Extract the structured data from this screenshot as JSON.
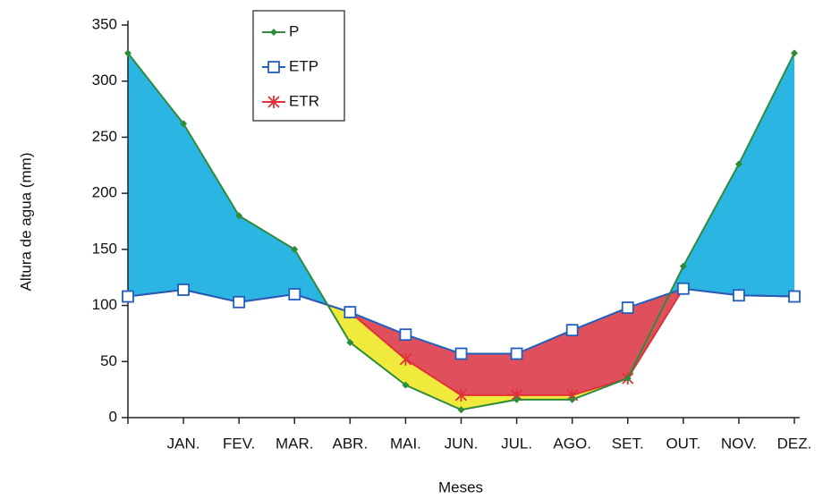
{
  "chart_data": {
    "type": "line",
    "x_label": "Meses",
    "y_label": "Altura de agua (mm)",
    "categories": [
      null,
      "JAN.",
      "FEV.",
      "MAR.",
      "ABR.",
      "MAI.",
      "JUN.",
      "JUL.",
      "AGO.",
      "SET.",
      "OUT.",
      "NOV.",
      "DEZ."
    ],
    "series": [
      {
        "name": "P",
        "color": "#2e8b3a",
        "values": [
          325,
          262,
          180,
          150,
          67,
          29,
          7,
          16,
          16,
          35,
          135,
          226,
          325
        ]
      },
      {
        "name": "ETP",
        "color": "#1f5fbf",
        "values": [
          108,
          114,
          103,
          110,
          94,
          74,
          57,
          57,
          78,
          98,
          115,
          109,
          108
        ]
      },
      {
        "name": "ETR",
        "color": "#e0303a",
        "values": [
          108,
          114,
          103,
          110,
          94,
          52,
          20,
          20,
          20,
          35,
          115,
          109,
          108
        ]
      }
    ],
    "ylim": [
      0,
      350
    ],
    "yticks": [
      0,
      50,
      100,
      150,
      200,
      250,
      300,
      350
    ]
  }
}
